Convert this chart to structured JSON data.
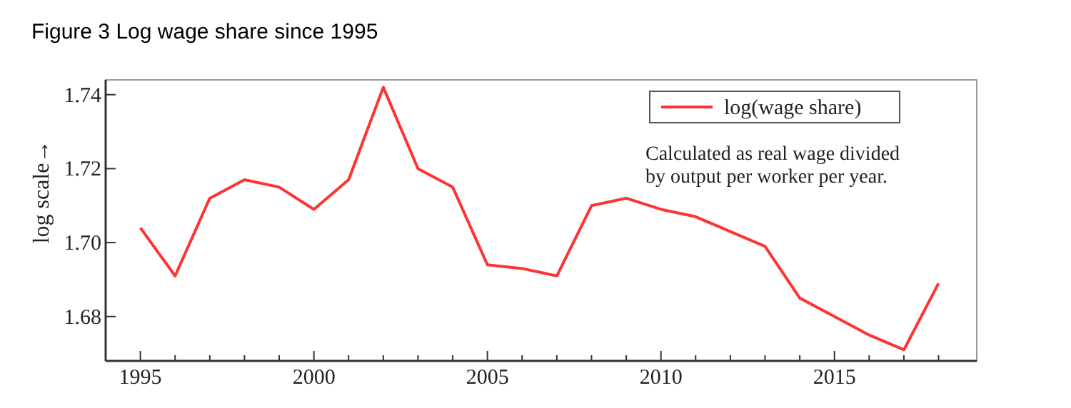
{
  "chart_data": {
    "type": "line",
    "title": "Figure 3 Log wage share since 1995",
    "ylabel": "log scale→",
    "x": [
      1995,
      1996,
      1997,
      1998,
      1999,
      2000,
      2001,
      2002,
      2003,
      2004,
      2005,
      2006,
      2007,
      2008,
      2009,
      2010,
      2011,
      2012,
      2013,
      2014,
      2015,
      2016,
      2017,
      2018
    ],
    "series": [
      {
        "name": "log(wage share)",
        "color": "#ff3333",
        "values": [
          1.704,
          1.691,
          1.712,
          1.717,
          1.715,
          1.709,
          1.717,
          1.742,
          1.72,
          1.715,
          1.694,
          1.693,
          1.691,
          1.71,
          1.712,
          1.709,
          1.707,
          1.703,
          1.699,
          1.685,
          1.68,
          1.675,
          1.671,
          1.689
        ]
      }
    ],
    "xlim": [
      1994,
      2019.1
    ],
    "ylim": [
      1.668,
      1.744
    ],
    "xticks": [
      1995,
      {
        "value": 1996,
        "label": null
      },
      {
        "value": 1997,
        "label": null
      },
      {
        "value": 1998,
        "label": null
      },
      {
        "value": 1999,
        "label": null
      },
      2000,
      {
        "value": 2001,
        "label": null
      },
      {
        "value": 2002,
        "label": null
      },
      {
        "value": 2003,
        "label": null
      },
      {
        "value": 2004,
        "label": null
      },
      2005,
      {
        "value": 2006,
        "label": null
      },
      {
        "value": 2007,
        "label": null
      },
      {
        "value": 2008,
        "label": null
      },
      {
        "value": 2009,
        "label": null
      },
      2010,
      {
        "value": 2011,
        "label": null
      },
      {
        "value": 2012,
        "label": null
      },
      {
        "value": 2013,
        "label": null
      },
      {
        "value": 2014,
        "label": null
      },
      2015,
      {
        "value": 2016,
        "label": null
      },
      {
        "value": 2017,
        "label": null
      },
      {
        "value": 2018,
        "label": null
      }
    ],
    "yticks": [
      {
        "value": 1.68,
        "label": "1.68"
      },
      {
        "value": 1.7,
        "label": "1.70"
      },
      {
        "value": 1.72,
        "label": "1.72"
      },
      {
        "value": 1.74,
        "label": "1.74"
      }
    ],
    "annotations": [
      "Calculated as real wage divided by output per worker per year."
    ],
    "legend": "top right",
    "grid": false,
    "marker": "none",
    "line_style": "solid"
  }
}
